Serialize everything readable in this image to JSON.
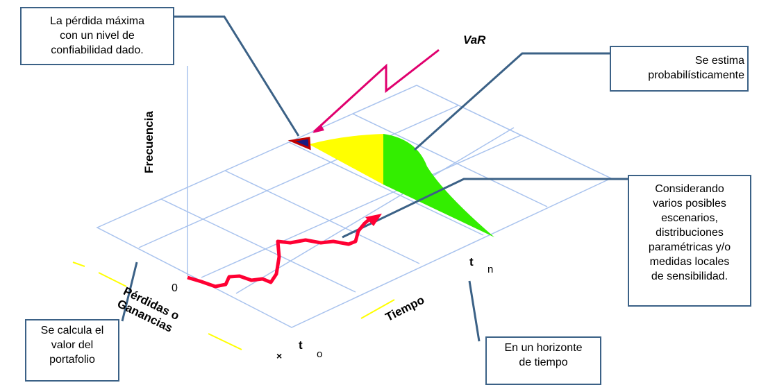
{
  "callouts": {
    "max_loss": "La pérdida máxima\ncon un nivel de\nconfiabilidad dado.",
    "estimated": "Se estima\nprobabilísticamente",
    "scenarios": "Considerando\nvarios posibles\nescenarios,\ndistribuciones\nparamétricas y/o\nmedidas locales\nde sensibilidad.",
    "portfolio": "Se calcula el\nvalor del\nportafolio",
    "horizon": "En un horizonte\nde tiempo"
  },
  "labels": {
    "var": "VaR",
    "frequency": "Frecuencia",
    "pnl": "Pérdidas o\nGanancias",
    "time": "Tiempo",
    "origin": "0",
    "t_main": "t",
    "sub_n": "n",
    "sub_o": "o",
    "x_mark": "×"
  },
  "colors": {
    "grid": "#a9c3ee",
    "callout_border": "#3b6186",
    "yellow": "#ffff00",
    "green": "#33ee00",
    "red_path": "#ff0033",
    "magenta": "#e0006e",
    "var_tail": "#c00000"
  }
}
